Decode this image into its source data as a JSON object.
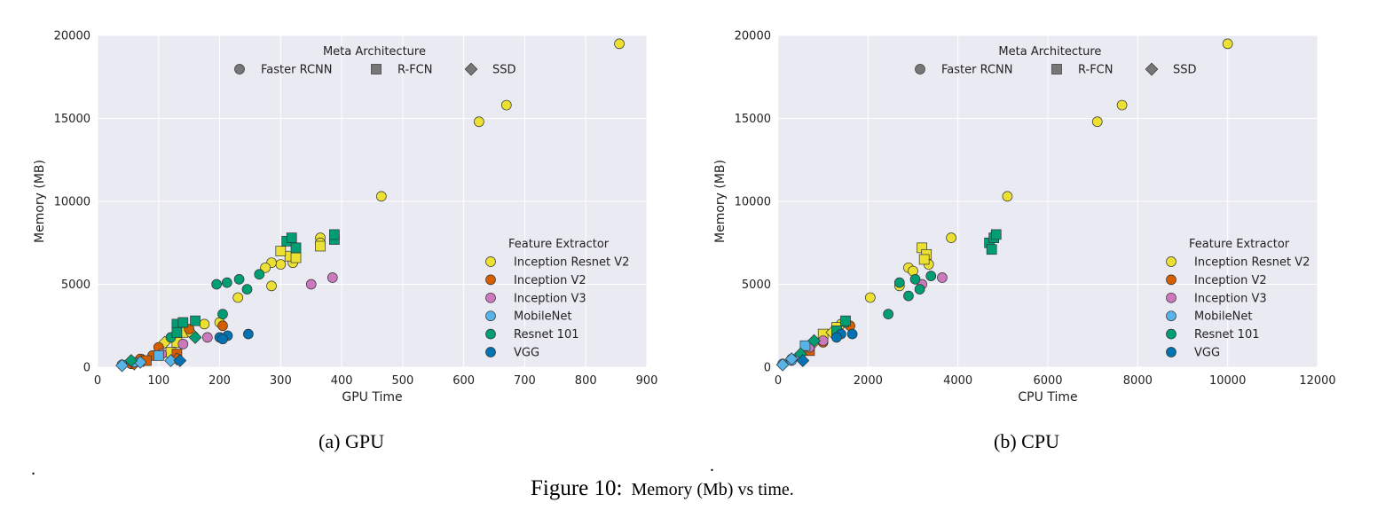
{
  "figure_caption": {
    "label": "Figure 10:",
    "text": "Memory (Mb) vs time."
  },
  "stray_marks": [
    ".",
    "."
  ],
  "colors": {
    "Inception Resnet V2": "#ece133",
    "Inception V2": "#d55e00",
    "Inception V3": "#cc78bc",
    "MobileNet": "#56b4e9",
    "Resnet 101": "#029e73",
    "VGG": "#0173b2",
    "meta_gray": "#777777",
    "background": "#eaeaf2"
  },
  "chart_data": [
    {
      "type": "scatter",
      "subcaption": "(a) GPU",
      "xlabel": "GPU Time",
      "ylabel": "Memory (MB)",
      "xlim": [
        0,
        900
      ],
      "ylim": [
        0,
        20000
      ],
      "xticks": [
        0,
        100,
        200,
        300,
        400,
        500,
        600,
        700,
        800,
        900
      ],
      "yticks": [
        0,
        5000,
        10000,
        15000,
        20000
      ],
      "grid": true,
      "legend_meta": {
        "title": "Meta Architecture",
        "placement": "top-center",
        "entries": [
          {
            "label": "Faster RCNN",
            "marker": "circle"
          },
          {
            "label": "R-FCN",
            "marker": "square"
          },
          {
            "label": "SSD",
            "marker": "diamond"
          }
        ]
      },
      "legend_feature": {
        "title": "Feature Extractor",
        "placement": "center-right",
        "entries": [
          "Inception Resnet V2",
          "Inception V2",
          "Inception V3",
          "MobileNet",
          "Resnet 101",
          "VGG"
        ]
      },
      "series": [
        {
          "extractor": "Inception Resnet V2",
          "marker": "circle",
          "points": [
            [
              855,
              19500
            ],
            [
              670,
              15800
            ],
            [
              625,
              14800
            ],
            [
              465,
              10300
            ],
            [
              365,
              7800
            ],
            [
              365,
              7500
            ],
            [
              300,
              6200
            ],
            [
              285,
              6300
            ],
            [
              275,
              6000
            ],
            [
              320,
              6300
            ],
            [
              285,
              4900
            ],
            [
              230,
              4200
            ],
            [
              200,
              2700
            ],
            [
              175,
              2600
            ]
          ]
        },
        {
          "extractor": "Inception Resnet V2",
          "marker": "square",
          "points": [
            [
              315,
              6700
            ],
            [
              325,
              6600
            ],
            [
              300,
              7000
            ],
            [
              365,
              7300
            ],
            [
              130,
              1500
            ],
            [
              120,
              900
            ],
            [
              140,
              2100
            ]
          ]
        },
        {
          "extractor": "Inception Resnet V2",
          "marker": "diamond",
          "points": [
            [
              75,
              400
            ],
            [
              155,
              2000
            ],
            [
              110,
              1500
            ]
          ]
        },
        {
          "extractor": "Inception V2",
          "marker": "circle",
          "points": [
            [
              205,
              2500
            ],
            [
              150,
              2300
            ],
            [
              100,
              1200
            ],
            [
              90,
              700
            ],
            [
              70,
              500
            ],
            [
              55,
              200
            ]
          ]
        },
        {
          "extractor": "Inception V2",
          "marker": "square",
          "points": [
            [
              130,
              800
            ],
            [
              80,
              400
            ]
          ]
        },
        {
          "extractor": "Inception V2",
          "marker": "diamond",
          "points": [
            [
              60,
              200
            ],
            [
              130,
              500
            ]
          ]
        },
        {
          "extractor": "Inception V3",
          "marker": "circle",
          "points": [
            [
              385,
              5400
            ],
            [
              350,
              5000
            ],
            [
              180,
              1800
            ],
            [
              140,
              1400
            ],
            [
              105,
              800
            ]
          ]
        },
        {
          "extractor": "MobileNet",
          "marker": "circle",
          "points": [
            [
              40,
              150
            ],
            [
              60,
              300
            ]
          ]
        },
        {
          "extractor": "MobileNet",
          "marker": "square",
          "points": [
            [
              100,
              700
            ]
          ]
        },
        {
          "extractor": "MobileNet",
          "marker": "diamond",
          "points": [
            [
              40,
              100
            ],
            [
              120,
              400
            ],
            [
              70,
              300
            ]
          ]
        },
        {
          "extractor": "Resnet 101",
          "marker": "circle",
          "points": [
            [
              195,
              5000
            ],
            [
              212,
              5100
            ],
            [
              232,
              5300
            ],
            [
              265,
              5600
            ],
            [
              245,
              4700
            ],
            [
              205,
              3200
            ],
            [
              120,
              1800
            ]
          ]
        },
        {
          "extractor": "Resnet 101",
          "marker": "square",
          "points": [
            [
              310,
              7600
            ],
            [
              318,
              7800
            ],
            [
              325,
              7200
            ],
            [
              388,
              7700
            ],
            [
              388,
              8000
            ],
            [
              130,
              2600
            ],
            [
              140,
              2700
            ],
            [
              160,
              2800
            ],
            [
              130,
              2100
            ]
          ]
        },
        {
          "extractor": "Resnet 101",
          "marker": "diamond",
          "points": [
            [
              160,
              1800
            ],
            [
              55,
              400
            ]
          ]
        },
        {
          "extractor": "VGG",
          "marker": "circle",
          "points": [
            [
              247,
              2000
            ],
            [
              213,
              1900
            ],
            [
              200,
              1800
            ],
            [
              205,
              1700
            ]
          ]
        },
        {
          "extractor": "VGG",
          "marker": "diamond",
          "points": [
            [
              135,
              400
            ]
          ]
        }
      ]
    },
    {
      "type": "scatter",
      "subcaption": "(b) CPU",
      "xlabel": "CPU Time",
      "ylabel": "Memory (MB)",
      "xlim": [
        0,
        12000
      ],
      "ylim": [
        0,
        20000
      ],
      "xticks": [
        0,
        2000,
        4000,
        6000,
        8000,
        10000,
        12000
      ],
      "yticks": [
        0,
        5000,
        10000,
        15000,
        20000
      ],
      "grid": true,
      "legend_meta": {
        "title": "Meta Architecture",
        "placement": "top-center",
        "entries": [
          {
            "label": "Faster RCNN",
            "marker": "circle"
          },
          {
            "label": "R-FCN",
            "marker": "square"
          },
          {
            "label": "SSD",
            "marker": "diamond"
          }
        ]
      },
      "legend_feature": {
        "title": "Feature Extractor",
        "placement": "center-right",
        "entries": [
          "Inception Resnet V2",
          "Inception V2",
          "Inception V3",
          "MobileNet",
          "Resnet 101",
          "VGG"
        ]
      },
      "series": [
        {
          "extractor": "Inception Resnet V2",
          "marker": "circle",
          "points": [
            [
              10000,
              19500
            ],
            [
              7650,
              15800
            ],
            [
              7100,
              14800
            ],
            [
              5100,
              10300
            ],
            [
              3850,
              7800
            ],
            [
              2900,
              6000
            ],
            [
              3000,
              5800
            ],
            [
              3350,
              6200
            ],
            [
              2700,
              4900
            ],
            [
              2050,
              4200
            ],
            [
              1400,
              2600
            ]
          ]
        },
        {
          "extractor": "Inception Resnet V2",
          "marker": "square",
          "points": [
            [
              3200,
              7200
            ],
            [
              3300,
              6800
            ],
            [
              3250,
              6500
            ],
            [
              1000,
              2000
            ],
            [
              1300,
              2400
            ]
          ]
        },
        {
          "extractor": "Inception Resnet V2",
          "marker": "diamond",
          "points": [
            [
              800,
              1500
            ],
            [
              1200,
              2100
            ]
          ]
        },
        {
          "extractor": "Inception V2",
          "marker": "circle",
          "points": [
            [
              1600,
              2500
            ],
            [
              1000,
              1500
            ],
            [
              600,
              1000
            ],
            [
              300,
              500
            ]
          ]
        },
        {
          "extractor": "Inception V2",
          "marker": "square",
          "points": [
            [
              700,
              1000
            ]
          ]
        },
        {
          "extractor": "Inception V3",
          "marker": "circle",
          "points": [
            [
              3650,
              5400
            ],
            [
              3200,
              5000
            ],
            [
              1000,
              1600
            ],
            [
              700,
              1200
            ]
          ]
        },
        {
          "extractor": "MobileNet",
          "marker": "circle",
          "points": [
            [
              100,
              200
            ],
            [
              300,
              400
            ]
          ]
        },
        {
          "extractor": "MobileNet",
          "marker": "square",
          "points": [
            [
              600,
              1300
            ]
          ]
        },
        {
          "extractor": "MobileNet",
          "marker": "diamond",
          "points": [
            [
              100,
              150
            ],
            [
              300,
              500
            ]
          ]
        },
        {
          "extractor": "Resnet 101",
          "marker": "circle",
          "points": [
            [
              2700,
              5100
            ],
            [
              3050,
              5300
            ],
            [
              3400,
              5500
            ],
            [
              3150,
              4700
            ],
            [
              2900,
              4300
            ],
            [
              2450,
              3200
            ],
            [
              1500,
              2700
            ]
          ]
        },
        {
          "extractor": "Resnet 101",
          "marker": "square",
          "points": [
            [
              4700,
              7500
            ],
            [
              4750,
              7100
            ],
            [
              4800,
              7800
            ],
            [
              4850,
              8000
            ],
            [
              1500,
              2800
            ],
            [
              1300,
              2200
            ]
          ]
        },
        {
          "extractor": "Resnet 101",
          "marker": "diamond",
          "points": [
            [
              800,
              1600
            ],
            [
              500,
              800
            ]
          ]
        },
        {
          "extractor": "VGG",
          "marker": "circle",
          "points": [
            [
              1650,
              2000
            ],
            [
              1400,
              2000
            ],
            [
              1300,
              1800
            ]
          ]
        },
        {
          "extractor": "VGG",
          "marker": "diamond",
          "points": [
            [
              550,
              400
            ]
          ]
        }
      ]
    }
  ]
}
